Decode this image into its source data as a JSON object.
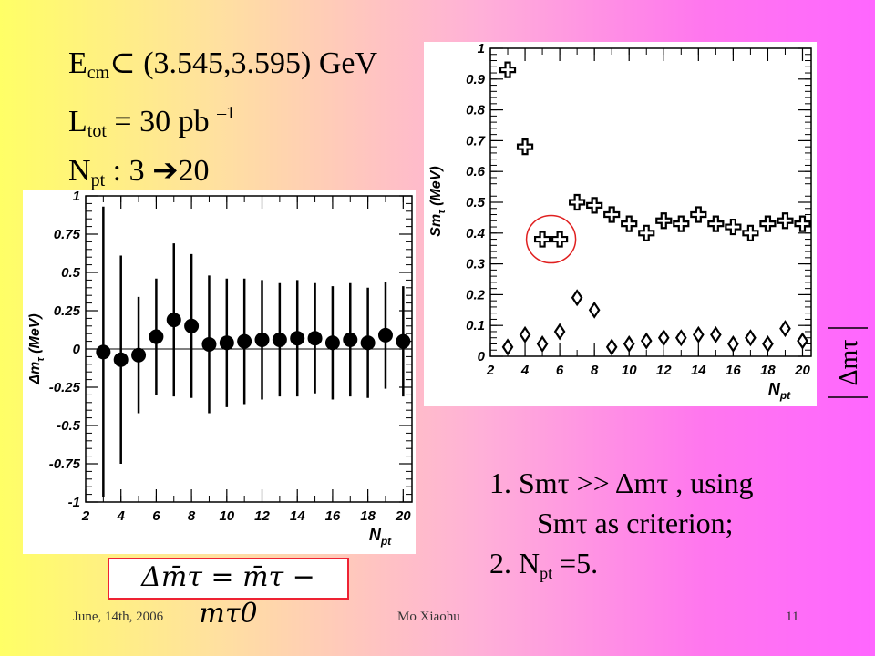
{
  "header": {
    "ecm_base": "E",
    "ecm_sub": "cm",
    "ecm_rest": "⊂ (3.545,3.595) GeV",
    "ltot_base": "L",
    "ltot_sub": "tot",
    "ltot_rest": " = 30 pb ",
    "ltot_sup": "–1",
    "npt_base": "N",
    "npt_sub": "pt",
    "npt_rest": " : 3 ➔20"
  },
  "notes": {
    "item1_line1": "1.  Smτ  >> Δmτ , using",
    "item1_line2": "Smτ  as criterion;",
    "item2_base": "2.  N",
    "item2_sub": "pt",
    "item2_rest": " =5."
  },
  "formula": "Δm̄τ = m̄τ − mτ0",
  "side_label": "Δmτ",
  "footer": {
    "date": "June, 14th, 2006",
    "author": "Mo Xiaohu",
    "page": "11"
  },
  "chart_data": [
    {
      "type": "scatter",
      "title": "",
      "xlabel": "N_pt",
      "ylabel": "Δm_τ (MeV)",
      "xlim": [
        2,
        20.5
      ],
      "ylim": [
        -1,
        1
      ],
      "xticks": [
        2,
        4,
        6,
        8,
        10,
        12,
        14,
        16,
        18,
        20
      ],
      "yticks": [
        -1,
        -0.75,
        -0.5,
        -0.25,
        0,
        0.25,
        0.5,
        0.75,
        1
      ],
      "ytick_labels": [
        "-1",
        "-0.75",
        "-0.5",
        "-0.25",
        "0",
        "0.25",
        "0.5",
        "0.75",
        "1"
      ],
      "x": [
        3,
        4,
        5,
        6,
        7,
        8,
        9,
        10,
        11,
        12,
        13,
        14,
        15,
        16,
        17,
        18,
        19,
        20
      ],
      "y": [
        -0.02,
        -0.07,
        -0.04,
        0.08,
        0.19,
        0.15,
        0.03,
        0.04,
        0.05,
        0.06,
        0.06,
        0.07,
        0.07,
        0.04,
        0.06,
        0.04,
        0.09,
        0.05
      ],
      "yerr": [
        0.95,
        0.68,
        0.38,
        0.38,
        0.5,
        0.47,
        0.45,
        0.42,
        0.41,
        0.39,
        0.37,
        0.38,
        0.36,
        0.37,
        0.37,
        0.36,
        0.35,
        0.36
      ],
      "marker": "filled-circle"
    },
    {
      "type": "scatter",
      "title": "",
      "xlabel": "N_pt",
      "ylabel": "Sm_τ (MeV)",
      "xlim": [
        2,
        20.5
      ],
      "ylim": [
        0,
        1
      ],
      "xticks": [
        2,
        4,
        6,
        8,
        10,
        12,
        14,
        16,
        18,
        20
      ],
      "yticks": [
        0,
        0.1,
        0.2,
        0.3,
        0.4,
        0.5,
        0.6,
        0.7,
        0.8,
        0.9,
        1
      ],
      "ytick_labels": [
        "0",
        "0.1",
        "0.2",
        "0.3",
        "0.4",
        "0.5",
        "0.6",
        "0.7",
        "0.8",
        "0.9",
        "1"
      ],
      "series": [
        {
          "marker": "cross",
          "x": [
            3,
            4,
            5,
            6,
            7,
            8,
            9,
            10,
            11,
            12,
            13,
            14,
            15,
            16,
            17,
            18,
            19,
            20
          ],
          "y": [
            0.93,
            0.68,
            0.38,
            0.38,
            0.5,
            0.49,
            0.46,
            0.43,
            0.4,
            0.44,
            0.43,
            0.46,
            0.43,
            0.42,
            0.4,
            0.43,
            0.44,
            0.43
          ]
        },
        {
          "marker": "diamond",
          "x": [
            3,
            4,
            5,
            6,
            7,
            8,
            9,
            10,
            11,
            12,
            13,
            14,
            15,
            16,
            17,
            18,
            19,
            20
          ],
          "y": [
            0.03,
            0.07,
            0.04,
            0.08,
            0.19,
            0.15,
            0.03,
            0.04,
            0.05,
            0.06,
            0.06,
            0.07,
            0.07,
            0.04,
            0.06,
            0.04,
            0.09,
            0.05
          ]
        }
      ],
      "highlight_x": [
        5,
        6
      ]
    }
  ]
}
